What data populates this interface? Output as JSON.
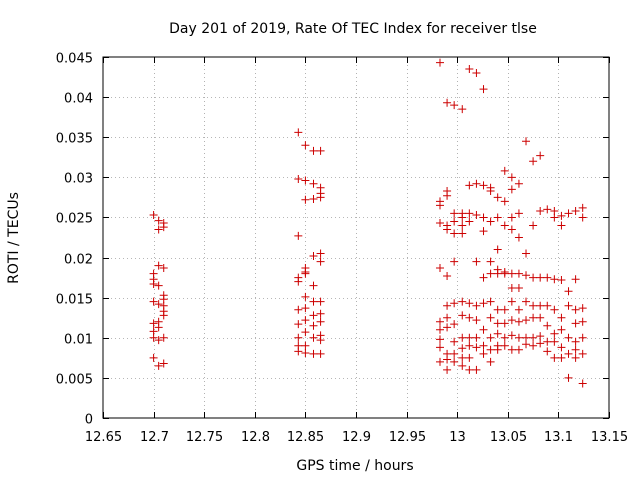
{
  "chart_data": {
    "type": "scatter",
    "title": "Day 201 of 2019, Rate Of TEC Index for receiver tlse",
    "xlabel": "GPS time / hours",
    "ylabel": "ROTI / TECUs",
    "xlim": [
      12.65,
      13.15
    ],
    "ylim": [
      0,
      0.045
    ],
    "xticks": [
      "12.65",
      "12.7",
      "12.75",
      "12.8",
      "12.85",
      "12.9",
      "12.95",
      "13",
      "13.05",
      "13.1",
      "13.15"
    ],
    "yticks": [
      "0",
      "0.005",
      "0.01",
      "0.015",
      "0.02",
      "0.025",
      "0.03",
      "0.035",
      "0.04",
      "0.045"
    ],
    "marker": "+",
    "grid": true,
    "series": [
      {
        "name": "ROTI",
        "color": "#cc0000",
        "points": [
          [
            12.7,
            0.0253
          ],
          [
            12.7,
            0.018
          ],
          [
            12.7,
            0.0173
          ],
          [
            12.7,
            0.0167
          ],
          [
            12.7,
            0.0145
          ],
          [
            12.7,
            0.0118
          ],
          [
            12.7,
            0.0108
          ],
          [
            12.7,
            0.01
          ],
          [
            12.7,
            0.0075
          ],
          [
            12.705,
            0.0246
          ],
          [
            12.705,
            0.0235
          ],
          [
            12.705,
            0.019
          ],
          [
            12.705,
            0.0165
          ],
          [
            12.705,
            0.0142
          ],
          [
            12.705,
            0.012
          ],
          [
            12.705,
            0.0113
          ],
          [
            12.705,
            0.0097
          ],
          [
            12.705,
            0.0065
          ],
          [
            12.71,
            0.0243
          ],
          [
            12.71,
            0.0238
          ],
          [
            12.71,
            0.0187
          ],
          [
            12.71,
            0.0153
          ],
          [
            12.71,
            0.0148
          ],
          [
            12.71,
            0.014
          ],
          [
            12.71,
            0.0133
          ],
          [
            12.71,
            0.0128
          ],
          [
            12.71,
            0.01
          ],
          [
            12.71,
            0.0068
          ],
          [
            12.843,
            0.0356
          ],
          [
            12.843,
            0.0298
          ],
          [
            12.843,
            0.0227
          ],
          [
            12.843,
            0.0175
          ],
          [
            12.843,
            0.017
          ],
          [
            12.843,
            0.0135
          ],
          [
            12.843,
            0.0117
          ],
          [
            12.843,
            0.01
          ],
          [
            12.843,
            0.009
          ],
          [
            12.843,
            0.0083
          ],
          [
            12.85,
            0.034
          ],
          [
            12.85,
            0.0296
          ],
          [
            12.85,
            0.0272
          ],
          [
            12.85,
            0.0187
          ],
          [
            12.85,
            0.0182
          ],
          [
            12.85,
            0.018
          ],
          [
            12.85,
            0.0151
          ],
          [
            12.85,
            0.0137
          ],
          [
            12.85,
            0.0122
          ],
          [
            12.85,
            0.0107
          ],
          [
            12.85,
            0.009
          ],
          [
            12.85,
            0.0081
          ],
          [
            12.858,
            0.0333
          ],
          [
            12.858,
            0.0292
          ],
          [
            12.858,
            0.0273
          ],
          [
            12.858,
            0.0202
          ],
          [
            12.858,
            0.0165
          ],
          [
            12.858,
            0.0145
          ],
          [
            12.858,
            0.0128
          ],
          [
            12.858,
            0.0115
          ],
          [
            12.858,
            0.01
          ],
          [
            12.858,
            0.008
          ],
          [
            12.865,
            0.0333
          ],
          [
            12.865,
            0.0287
          ],
          [
            12.865,
            0.028
          ],
          [
            12.865,
            0.0275
          ],
          [
            12.865,
            0.0205
          ],
          [
            12.865,
            0.0195
          ],
          [
            12.865,
            0.0145
          ],
          [
            12.865,
            0.013
          ],
          [
            12.865,
            0.012
          ],
          [
            12.865,
            0.0103
          ],
          [
            12.865,
            0.0097
          ],
          [
            12.865,
            0.008
          ],
          [
            12.983,
            0.0443
          ],
          [
            12.983,
            0.027
          ],
          [
            12.983,
            0.0265
          ],
          [
            12.983,
            0.0243
          ],
          [
            12.983,
            0.0187
          ],
          [
            12.983,
            0.012
          ],
          [
            12.983,
            0.011
          ],
          [
            12.983,
            0.0098
          ],
          [
            12.983,
            0.0088
          ],
          [
            12.983,
            0.007
          ],
          [
            12.99,
            0.0393
          ],
          [
            12.99,
            0.0283
          ],
          [
            12.99,
            0.0277
          ],
          [
            12.99,
            0.024
          ],
          [
            12.99,
            0.0235
          ],
          [
            12.99,
            0.0177
          ],
          [
            12.99,
            0.014
          ],
          [
            12.99,
            0.0125
          ],
          [
            12.99,
            0.0113
          ],
          [
            12.99,
            0.008
          ],
          [
            12.99,
            0.0073
          ],
          [
            12.99,
            0.006
          ],
          [
            12.997,
            0.039
          ],
          [
            12.997,
            0.0255
          ],
          [
            12.997,
            0.0245
          ],
          [
            12.997,
            0.023
          ],
          [
            12.997,
            0.0195
          ],
          [
            12.997,
            0.0143
          ],
          [
            12.997,
            0.0117
          ],
          [
            12.997,
            0.0095
          ],
          [
            12.997,
            0.008
          ],
          [
            12.997,
            0.007
          ],
          [
            13.005,
            0.0385
          ],
          [
            13.005,
            0.0255
          ],
          [
            13.005,
            0.025
          ],
          [
            13.005,
            0.024
          ],
          [
            13.005,
            0.023
          ],
          [
            13.005,
            0.0145
          ],
          [
            13.005,
            0.0128
          ],
          [
            13.005,
            0.01
          ],
          [
            13.005,
            0.0087
          ],
          [
            13.005,
            0.0075
          ],
          [
            13.005,
            0.0065
          ],
          [
            13.012,
            0.0435
          ],
          [
            13.012,
            0.029
          ],
          [
            13.012,
            0.0255
          ],
          [
            13.012,
            0.0245
          ],
          [
            13.012,
            0.0143
          ],
          [
            13.012,
            0.0125
          ],
          [
            13.012,
            0.01
          ],
          [
            13.012,
            0.009
          ],
          [
            13.012,
            0.0075
          ],
          [
            13.012,
            0.006
          ],
          [
            13.019,
            0.043
          ],
          [
            13.019,
            0.0292
          ],
          [
            13.019,
            0.0253
          ],
          [
            13.019,
            0.0195
          ],
          [
            13.019,
            0.014
          ],
          [
            13.019,
            0.0122
          ],
          [
            13.019,
            0.01
          ],
          [
            13.019,
            0.0088
          ],
          [
            13.019,
            0.006
          ],
          [
            13.026,
            0.041
          ],
          [
            13.026,
            0.029
          ],
          [
            13.026,
            0.025
          ],
          [
            13.026,
            0.0233
          ],
          [
            13.026,
            0.0175
          ],
          [
            13.026,
            0.0143
          ],
          [
            13.026,
            0.011
          ],
          [
            13.026,
            0.009
          ],
          [
            13.026,
            0.008
          ],
          [
            13.033,
            0.0287
          ],
          [
            13.033,
            0.0283
          ],
          [
            13.033,
            0.0245
          ],
          [
            13.033,
            0.0195
          ],
          [
            13.033,
            0.018
          ],
          [
            13.033,
            0.0145
          ],
          [
            13.033,
            0.0125
          ],
          [
            13.033,
            0.01
          ],
          [
            13.033,
            0.0085
          ],
          [
            13.033,
            0.007
          ],
          [
            13.04,
            0.0275
          ],
          [
            13.04,
            0.025
          ],
          [
            13.04,
            0.021
          ],
          [
            13.04,
            0.0185
          ],
          [
            13.04,
            0.018
          ],
          [
            13.04,
            0.0135
          ],
          [
            13.04,
            0.0118
          ],
          [
            13.04,
            0.0105
          ],
          [
            13.04,
            0.009
          ],
          [
            13.04,
            0.0085
          ],
          [
            13.047,
            0.0308
          ],
          [
            13.047,
            0.027
          ],
          [
            13.047,
            0.024
          ],
          [
            13.047,
            0.0182
          ],
          [
            13.047,
            0.018
          ],
          [
            13.047,
            0.0135
          ],
          [
            13.047,
            0.0118
          ],
          [
            13.047,
            0.01
          ],
          [
            13.047,
            0.009
          ],
          [
            13.054,
            0.03
          ],
          [
            13.054,
            0.0285
          ],
          [
            13.054,
            0.025
          ],
          [
            13.054,
            0.0235
          ],
          [
            13.054,
            0.018
          ],
          [
            13.054,
            0.0162
          ],
          [
            13.054,
            0.0145
          ],
          [
            13.054,
            0.0122
          ],
          [
            13.054,
            0.0103
          ],
          [
            13.054,
            0.0085
          ],
          [
            13.061,
            0.0292
          ],
          [
            13.061,
            0.0255
          ],
          [
            13.061,
            0.0225
          ],
          [
            13.061,
            0.018
          ],
          [
            13.061,
            0.0162
          ],
          [
            13.061,
            0.0135
          ],
          [
            13.061,
            0.012
          ],
          [
            13.061,
            0.01
          ],
          [
            13.061,
            0.0085
          ],
          [
            13.068,
            0.0345
          ],
          [
            13.068,
            0.0205
          ],
          [
            13.068,
            0.0178
          ],
          [
            13.068,
            0.0145
          ],
          [
            13.068,
            0.0122
          ],
          [
            13.068,
            0.01
          ],
          [
            13.068,
            0.0092
          ],
          [
            13.075,
            0.032
          ],
          [
            13.075,
            0.024
          ],
          [
            13.075,
            0.0175
          ],
          [
            13.075,
            0.014
          ],
          [
            13.075,
            0.0125
          ],
          [
            13.075,
            0.01
          ],
          [
            13.075,
            0.009
          ],
          [
            13.082,
            0.0327
          ],
          [
            13.082,
            0.0258
          ],
          [
            13.082,
            0.0175
          ],
          [
            13.082,
            0.014
          ],
          [
            13.082,
            0.0125
          ],
          [
            13.082,
            0.0102
          ],
          [
            13.082,
            0.0093
          ],
          [
            13.089,
            0.026
          ],
          [
            13.089,
            0.0175
          ],
          [
            13.089,
            0.014
          ],
          [
            13.089,
            0.0115
          ],
          [
            13.089,
            0.0095
          ],
          [
            13.089,
            0.0083
          ],
          [
            13.096,
            0.0258
          ],
          [
            13.096,
            0.025
          ],
          [
            13.096,
            0.0173
          ],
          [
            13.096,
            0.0135
          ],
          [
            13.096,
            0.0105
          ],
          [
            13.096,
            0.0095
          ],
          [
            13.096,
            0.0075
          ],
          [
            13.103,
            0.0252
          ],
          [
            13.103,
            0.024
          ],
          [
            13.103,
            0.0172
          ],
          [
            13.103,
            0.0125
          ],
          [
            13.103,
            0.011
          ],
          [
            13.103,
            0.0088
          ],
          [
            13.103,
            0.0075
          ],
          [
            13.11,
            0.0255
          ],
          [
            13.11,
            0.0158
          ],
          [
            13.11,
            0.014
          ],
          [
            13.11,
            0.01
          ],
          [
            13.11,
            0.008
          ],
          [
            13.11,
            0.005
          ],
          [
            13.117,
            0.0258
          ],
          [
            13.117,
            0.0173
          ],
          [
            13.117,
            0.0135
          ],
          [
            13.117,
            0.0118
          ],
          [
            13.117,
            0.0095
          ],
          [
            13.117,
            0.0085
          ],
          [
            13.117,
            0.0075
          ],
          [
            13.124,
            0.0262
          ],
          [
            13.124,
            0.025
          ],
          [
            13.124,
            0.0137
          ],
          [
            13.124,
            0.012
          ],
          [
            13.124,
            0.01
          ],
          [
            13.124,
            0.008
          ],
          [
            13.124,
            0.0043
          ]
        ]
      }
    ]
  }
}
